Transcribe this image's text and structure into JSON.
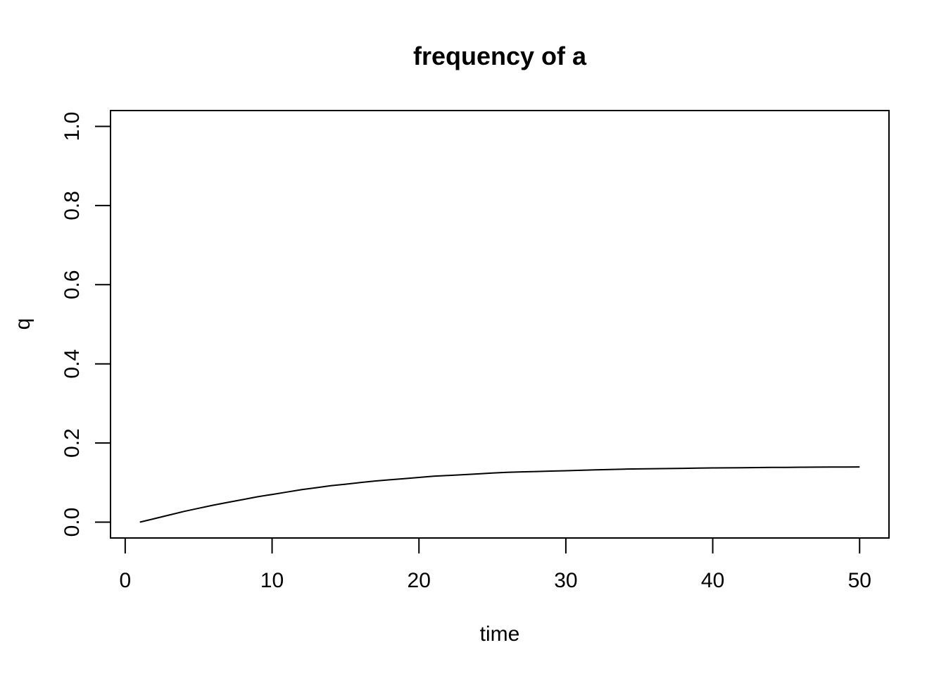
{
  "chart_data": {
    "type": "line",
    "title": "frequency of a",
    "xlabel": "time",
    "ylabel": "q",
    "xlim": [
      -1,
      52
    ],
    "ylim": [
      -0.04,
      1.04
    ],
    "x_ticks": [
      0,
      10,
      20,
      30,
      40,
      50
    ],
    "x_tick_labels": [
      "0",
      "10",
      "20",
      "30",
      "40",
      "50"
    ],
    "y_ticks": [
      0.0,
      0.2,
      0.4,
      0.6,
      0.8,
      1.0
    ],
    "y_tick_labels": [
      "0.0",
      "0.2",
      "0.4",
      "0.6",
      "0.8",
      "1.0"
    ],
    "grid": false,
    "line_color": "#000000",
    "series": [
      {
        "x": [
          1,
          2,
          3,
          4,
          5,
          6,
          7,
          8,
          9,
          10,
          11,
          12,
          13,
          14,
          15,
          16,
          17,
          18,
          19,
          20,
          21,
          22,
          23,
          24,
          25,
          26,
          27,
          28,
          29,
          30,
          31,
          32,
          33,
          34,
          35,
          36,
          37,
          38,
          39,
          40,
          41,
          42,
          43,
          44,
          45,
          46,
          47,
          48,
          49,
          50
        ],
        "values": [
          0.0,
          0.009,
          0.018,
          0.027,
          0.035,
          0.043,
          0.05,
          0.057,
          0.064,
          0.07,
          0.076,
          0.082,
          0.087,
          0.092,
          0.096,
          0.1,
          0.104,
          0.107,
          0.11,
          0.113,
          0.116,
          0.118,
          0.12,
          0.122,
          0.124,
          0.126,
          0.127,
          0.128,
          0.129,
          0.13,
          0.131,
          0.132,
          0.133,
          0.134,
          0.1345,
          0.135,
          0.1355,
          0.136,
          0.1365,
          0.137,
          0.1373,
          0.1376,
          0.1379,
          0.1382,
          0.1385,
          0.1388,
          0.139,
          0.1392,
          0.1394,
          0.1396
        ]
      }
    ]
  }
}
